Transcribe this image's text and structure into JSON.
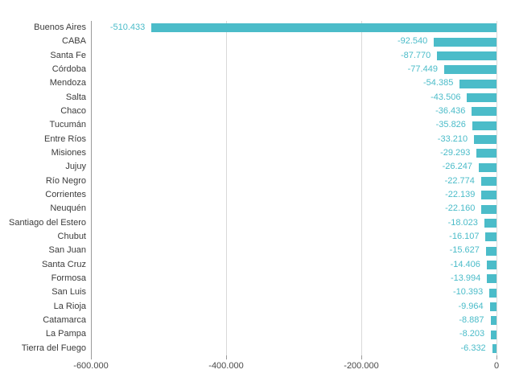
{
  "chart_data": {
    "type": "bar",
    "orientation": "horizontal",
    "title": "",
    "xlabel": "",
    "ylabel": "",
    "categories": [
      "Buenos Aires",
      "CABA",
      "Santa Fe",
      "Córdoba",
      "Mendoza",
      "Salta",
      "Chaco",
      "Tucumán",
      "Entre Ríos",
      "Misiones",
      "Jujuy",
      "Río Negro",
      "Corrientes",
      "Neuquén",
      "Santiago del Estero",
      "Chubut",
      "San Juan",
      "Santa Cruz",
      "Formosa",
      "San Luis",
      "La Rioja",
      "Catamarca",
      "La Pampa",
      "Tierra del Fuego"
    ],
    "values": [
      -510433,
      -92540,
      -87770,
      -77449,
      -54385,
      -43506,
      -36436,
      -35826,
      -33210,
      -29293,
      -26247,
      -22774,
      -22139,
      -22160,
      -18023,
      -16107,
      -15627,
      -14406,
      -13994,
      -10393,
      -9964,
      -8887,
      -8203,
      -6332
    ],
    "value_labels": [
      "-510.433",
      "-92.540",
      "-87.770",
      "-77.449",
      "-54.385",
      "-43.506",
      "-36.436",
      "-35.826",
      "-33.210",
      "-29.293",
      "-26.247",
      "-22.774",
      "-22.139",
      "-22.160",
      "-18.023",
      "-16.107",
      "-15.627",
      "-14.406",
      "-13.994",
      "-10.393",
      "-9.964",
      "-8.887",
      "-8.203",
      "-6.332"
    ],
    "xlim": [
      -600000,
      0
    ],
    "x_ticks": [
      {
        "value": -600000,
        "label": "-600.000"
      },
      {
        "value": -400000,
        "label": "-400.000"
      },
      {
        "value": -200000,
        "label": "-200.000"
      },
      {
        "value": 0,
        "label": "0"
      }
    ],
    "grid": true,
    "legend": false,
    "colors": {
      "bar": "#4bbcc9",
      "value_label": "#4bbcc9",
      "category_label": "#3b3b3b",
      "tick_label": "#4a4a4a",
      "gridline": "#d9d9d9",
      "axis_line": "#9a9a9a",
      "tick_mark": "#9a9a9a",
      "background": "#ffffff"
    }
  }
}
